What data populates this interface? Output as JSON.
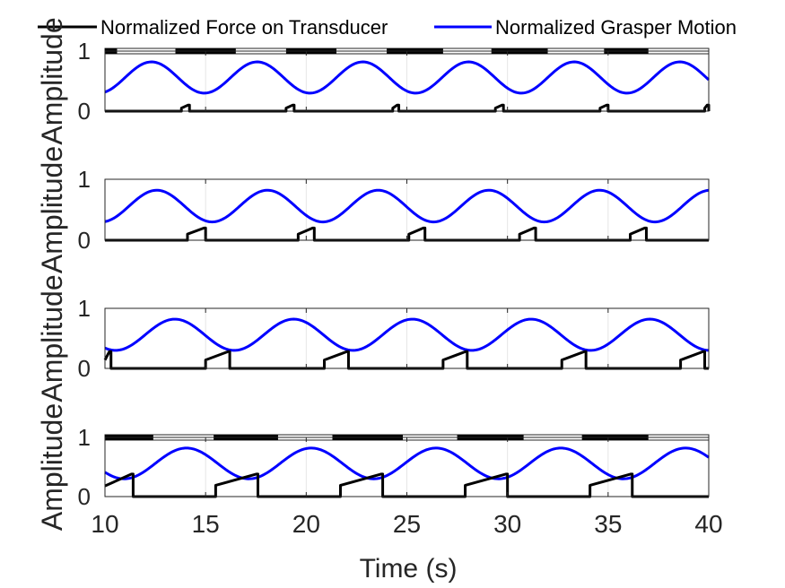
{
  "legend": {
    "entries": [
      {
        "label": "Normalized Force on Transducer",
        "color": "#000000"
      },
      {
        "label": "Normalized Grasper Motion",
        "color": "#0000ff"
      }
    ]
  },
  "colors": {
    "force": "#000000",
    "motion": "#0000ff",
    "axes": "#262626",
    "grid": "#e6e6e6"
  },
  "chart_data": [
    {
      "type": "line",
      "ylabel": "Amplitude",
      "xlim": [
        10,
        40
      ],
      "ylim": [
        0,
        1
      ],
      "yticks": [
        0,
        1
      ],
      "xticks": [
        10,
        15,
        20,
        25,
        30,
        35,
        40
      ],
      "grid": true,
      "period": 5.25,
      "phase": 11.0,
      "motion": {
        "min": 0.3,
        "max": 0.82
      },
      "force_pulses": [
        {
          "start": 13.8,
          "end": 14.2,
          "peak": 0.1
        },
        {
          "start": 19.0,
          "end": 19.4,
          "peak": 0.1
        },
        {
          "start": 24.3,
          "end": 24.6,
          "peak": 0.1
        },
        {
          "start": 29.4,
          "end": 29.8,
          "peak": 0.1
        },
        {
          "start": 34.6,
          "end": 35.0,
          "peak": 0.1
        },
        {
          "start": 39.8,
          "end": 40.0,
          "peak": 0.1
        }
      ],
      "stimulus_bar": [
        {
          "start": 10.0,
          "end": 10.6,
          "on": true
        },
        {
          "start": 13.5,
          "end": 16.5,
          "on": true
        },
        {
          "start": 19.0,
          "end": 21.5,
          "on": true
        },
        {
          "start": 24.0,
          "end": 26.8,
          "on": true
        },
        {
          "start": 29.2,
          "end": 32.0,
          "on": true
        },
        {
          "start": 34.8,
          "end": 37.0,
          "on": true
        }
      ]
    },
    {
      "type": "line",
      "ylabel": "Amplitude",
      "xlim": [
        10,
        40
      ],
      "ylim": [
        0,
        1
      ],
      "yticks": [
        0,
        1
      ],
      "xticks": [
        10,
        15,
        20,
        25,
        30,
        35,
        40
      ],
      "grid": true,
      "period": 5.5,
      "phase": 11.2,
      "motion": {
        "min": 0.3,
        "max": 0.82
      },
      "force_pulses": [
        {
          "start": 14.1,
          "end": 15.0,
          "peak": 0.2
        },
        {
          "start": 19.6,
          "end": 20.4,
          "peak": 0.2
        },
        {
          "start": 25.1,
          "end": 25.9,
          "peak": 0.2
        },
        {
          "start": 30.6,
          "end": 31.4,
          "peak": 0.2
        },
        {
          "start": 36.1,
          "end": 36.9,
          "peak": 0.2
        }
      ],
      "stimulus_bar": []
    },
    {
      "type": "line",
      "ylabel": "Amplitude",
      "xlim": [
        10,
        40
      ],
      "ylim": [
        0,
        1
      ],
      "yticks": [
        0,
        1
      ],
      "xticks": [
        10,
        15,
        20,
        25,
        30,
        35,
        40
      ],
      "grid": true,
      "period": 5.9,
      "phase": 12.0,
      "motion": {
        "min": 0.3,
        "max": 0.82
      },
      "force_pulses": [
        {
          "start": 10.0,
          "end": 10.3,
          "peak": 0.28
        },
        {
          "start": 15.0,
          "end": 16.2,
          "peak": 0.28
        },
        {
          "start": 20.9,
          "end": 22.1,
          "peak": 0.28
        },
        {
          "start": 26.8,
          "end": 28.0,
          "peak": 0.28
        },
        {
          "start": 32.7,
          "end": 33.9,
          "peak": 0.28
        },
        {
          "start": 38.6,
          "end": 39.8,
          "peak": 0.28
        }
      ],
      "stimulus_bar": []
    },
    {
      "type": "line",
      "ylabel": "Amplitude",
      "xlabel": "Time (s)",
      "xlim": [
        10,
        40
      ],
      "ylim": [
        0,
        1
      ],
      "yticks": [
        0,
        1
      ],
      "xticks": [
        10,
        15,
        20,
        25,
        30,
        35,
        40
      ],
      "grid": true,
      "period": 6.2,
      "phase": 12.5,
      "motion": {
        "min": 0.3,
        "max": 0.82
      },
      "force_pulses": [
        {
          "start": 10.0,
          "end": 11.4,
          "peak": 0.38,
          "base": 0.18
        },
        {
          "start": 15.5,
          "end": 17.6,
          "peak": 0.38
        },
        {
          "start": 21.7,
          "end": 23.8,
          "peak": 0.38
        },
        {
          "start": 27.9,
          "end": 30.0,
          "peak": 0.38
        },
        {
          "start": 34.1,
          "end": 36.2,
          "peak": 0.38
        }
      ],
      "stimulus_bar": [
        {
          "start": 10.0,
          "end": 12.4,
          "on": true
        },
        {
          "start": 15.4,
          "end": 18.6,
          "on": true
        },
        {
          "start": 21.3,
          "end": 24.8,
          "on": true
        },
        {
          "start": 27.5,
          "end": 30.8,
          "on": true
        },
        {
          "start": 33.7,
          "end": 37.0,
          "on": true
        }
      ]
    }
  ]
}
